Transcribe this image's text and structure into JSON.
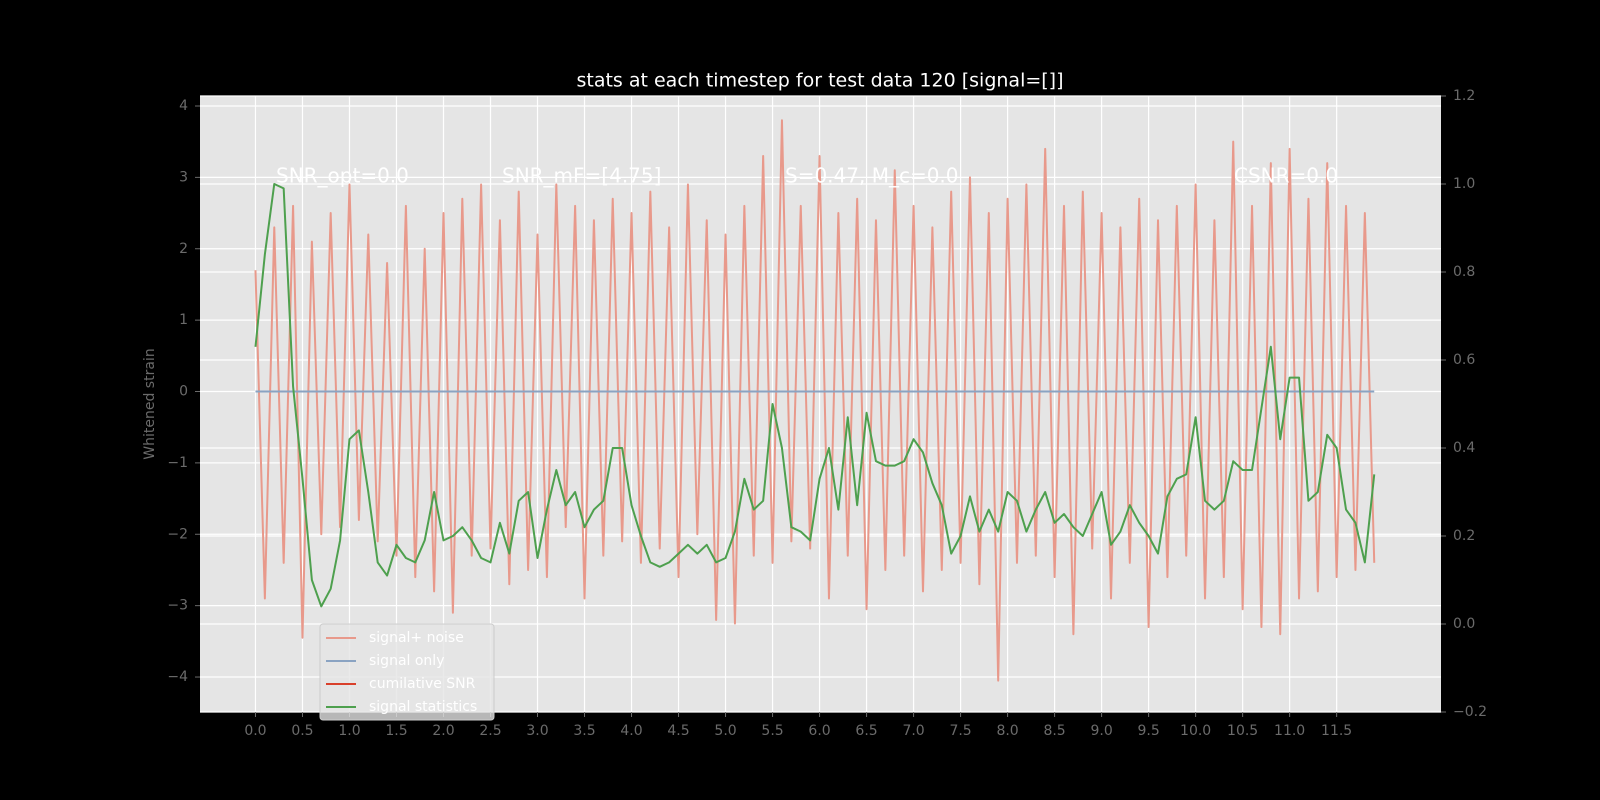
{
  "chart_data": {
    "type": "line",
    "title": "stats at each timestep for test data 120 [signal=[]]",
    "y_label": "Whitened strain",
    "annotations": [
      "SNR_opt=0.0",
      "SNR_mF=[4.75]",
      "S=0.47, M_c=0.0",
      "CSNR=0.0"
    ],
    "xlim": [
      -0.59,
      12.61
    ],
    "ylim": [
      -4.49,
      4.14
    ],
    "y2lim": [
      -0.2,
      1.2
    ],
    "xticks": [
      {
        "value": 0,
        "label": "0.0"
      },
      0.5,
      {
        "value": 1,
        "label": "1.0"
      },
      1.5,
      {
        "value": 2,
        "label": "2.0"
      },
      2.5,
      {
        "value": 3,
        "label": "3.0"
      },
      3.5,
      {
        "value": 4,
        "label": "4.0"
      },
      4.5,
      {
        "value": 5,
        "label": "5.0"
      },
      5.5,
      {
        "value": 6,
        "label": "6.0"
      },
      6.5,
      {
        "value": 7,
        "label": "7.0"
      },
      7.5,
      {
        "value": 8,
        "label": "8.0"
      },
      8.5,
      {
        "value": 9,
        "label": "9.0"
      },
      9.5,
      {
        "value": 10,
        "label": "10.0"
      },
      10.5,
      {
        "value": 11,
        "label": "11.0"
      },
      11.5
    ],
    "yticks": [
      {
        "value": -4,
        "label": "−4"
      },
      {
        "value": -3,
        "label": "−3"
      },
      {
        "value": -2,
        "label": "−2"
      },
      {
        "value": -1,
        "label": "−1"
      },
      0,
      1,
      2,
      3,
      4
    ],
    "y2ticks": [
      {
        "value": -0.2,
        "label": "−0.2"
      },
      {
        "value": 0,
        "label": "0.0"
      },
      0.2,
      0.4,
      0.6,
      0.8,
      {
        "value": 1,
        "label": "1.0"
      },
      1.2
    ],
    "grid": true,
    "legend": "lower left",
    "x": [
      0,
      0.1,
      0.2,
      0.3,
      0.4,
      0.5,
      0.6,
      0.7,
      0.8,
      0.9,
      1,
      1.1,
      1.2,
      1.3,
      1.4,
      1.5,
      1.6,
      1.7,
      1.8,
      1.9,
      2,
      2.1,
      2.2,
      2.3,
      2.4,
      2.5,
      2.6,
      2.7,
      2.8,
      2.9,
      3,
      3.1,
      3.2,
      3.3,
      3.4,
      3.5,
      3.6,
      3.7,
      3.8,
      3.9,
      4,
      4.1,
      4.2,
      4.3,
      4.4,
      4.5,
      4.6,
      4.7,
      4.8,
      4.9,
      5,
      5.1,
      5.2,
      5.3,
      5.4,
      5.5,
      5.6,
      5.7,
      5.8,
      5.9,
      6,
      6.1,
      6.2,
      6.3,
      6.4,
      6.5,
      6.6,
      6.7,
      6.8,
      6.9,
      7,
      7.1,
      7.2,
      7.3,
      7.4,
      7.5,
      7.6,
      7.7,
      7.8,
      7.9,
      8,
      8.1,
      8.2,
      8.3,
      8.4,
      8.5,
      8.6,
      8.7,
      8.8,
      8.9,
      9,
      9.1,
      9.2,
      9.3,
      9.4,
      9.5,
      9.6,
      9.7,
      9.8,
      9.9,
      10,
      10.1,
      10.2,
      10.3,
      10.4,
      10.5,
      10.6,
      10.7,
      10.8,
      10.9,
      11,
      11.1,
      11.2,
      11.3,
      11.4,
      11.5,
      11.6,
      11.7,
      11.8,
      11.9
    ],
    "series": [
      {
        "name": "signal+ noise",
        "color": "#e8998b",
        "values": [
          1.7,
          -2.9,
          2.3,
          -2.4,
          2.6,
          -3.45,
          2.1,
          -2.0,
          2.5,
          -1.9,
          2.9,
          -1.8,
          2.2,
          -2.1,
          1.8,
          -2.3,
          2.6,
          -2.6,
          2.0,
          -2.8,
          2.5,
          -3.1,
          2.7,
          -2.3,
          2.9,
          -2.2,
          2.4,
          -2.7,
          2.8,
          -2.5,
          2.2,
          -2.6,
          2.9,
          -1.9,
          2.6,
          -2.9,
          2.4,
          -2.3,
          2.7,
          -2.1,
          2.5,
          -2.4,
          2.8,
          -2.2,
          2.3,
          -2.6,
          2.9,
          -2.0,
          2.4,
          -3.2,
          2.2,
          -3.25,
          2.6,
          -2.3,
          3.3,
          -2.4,
          3.8,
          -2.1,
          2.6,
          -2.2,
          3.3,
          -2.9,
          2.5,
          -2.3,
          2.7,
          -3.05,
          2.4,
          -2.5,
          3.1,
          -2.3,
          2.6,
          -2.8,
          2.3,
          -2.5,
          2.8,
          -2.4,
          3.0,
          -2.7,
          2.5,
          -4.05,
          2.7,
          -2.4,
          2.9,
          -2.3,
          3.4,
          -2.6,
          2.6,
          -3.4,
          2.8,
          -2.2,
          2.5,
          -2.9,
          2.3,
          -2.4,
          2.7,
          -3.3,
          2.4,
          -2.6,
          2.6,
          -2.3,
          2.9,
          -2.9,
          2.4,
          -2.6,
          3.5,
          -3.05,
          2.6,
          -3.3,
          3.2,
          -3.4,
          3.4,
          -2.9,
          2.7,
          -2.8,
          3.2,
          -2.6,
          2.6,
          -2.5,
          2.5,
          -2.4
        ]
      },
      {
        "name": "signal only",
        "color": "#8aa3c2",
        "values": [
          0,
          0,
          0,
          0,
          0,
          0,
          0,
          0,
          0,
          0,
          0,
          0,
          0,
          0,
          0,
          0,
          0,
          0,
          0,
          0,
          0,
          0,
          0,
          0,
          0,
          0,
          0,
          0,
          0,
          0,
          0,
          0,
          0,
          0,
          0,
          0,
          0,
          0,
          0,
          0,
          0,
          0,
          0,
          0,
          0,
          0,
          0,
          0,
          0,
          0,
          0,
          0,
          0,
          0,
          0,
          0,
          0,
          0,
          0,
          0,
          0,
          0,
          0,
          0,
          0,
          0,
          0,
          0,
          0,
          0,
          0,
          0,
          0,
          0,
          0,
          0,
          0,
          0,
          0,
          0,
          0,
          0,
          0,
          0,
          0,
          0,
          0,
          0,
          0,
          0,
          0,
          0,
          0,
          0,
          0,
          0,
          0,
          0,
          0,
          0,
          0,
          0,
          0,
          0,
          0,
          0,
          0,
          0,
          0,
          0,
          0,
          0,
          0,
          0,
          0,
          0,
          0,
          0,
          0,
          0
        ]
      },
      {
        "name": "cumilative SNR",
        "color": "#d9402b",
        "axis": "y2",
        "values": [
          null,
          null,
          null,
          null,
          null,
          null,
          null,
          null,
          null,
          null,
          null,
          null,
          null,
          null,
          null,
          null,
          null,
          null,
          null,
          null,
          null,
          null,
          null,
          null,
          null,
          null,
          null,
          null,
          null,
          null,
          null,
          null,
          null,
          null,
          null,
          null,
          null,
          null,
          null,
          null,
          null,
          null,
          null,
          null,
          null,
          null,
          null,
          null,
          null,
          null,
          null,
          null,
          null,
          null,
          null,
          null,
          null,
          null,
          null,
          null,
          null,
          null,
          null,
          null,
          null,
          null,
          null,
          null,
          null,
          null,
          null,
          null,
          null,
          null,
          null,
          null,
          null,
          null,
          null,
          null,
          null,
          null,
          null,
          null,
          null,
          null,
          null,
          null,
          null,
          null,
          null,
          null,
          null,
          null,
          null,
          null,
          null,
          null,
          null,
          null,
          null,
          null,
          null,
          null,
          null,
          null,
          null,
          null,
          null,
          null,
          null,
          null,
          null,
          null,
          null,
          null,
          null,
          null,
          null,
          null
        ]
      },
      {
        "name": "signal statistics",
        "color": "#4ea04e",
        "axis": "y2",
        "values": [
          0.63,
          0.84,
          1.0,
          0.99,
          0.54,
          0.33,
          0.1,
          0.04,
          0.08,
          0.19,
          0.42,
          0.44,
          0.3,
          0.14,
          0.11,
          0.18,
          0.15,
          0.14,
          0.19,
          0.3,
          0.19,
          0.2,
          0.22,
          0.19,
          0.15,
          0.14,
          0.23,
          0.16,
          0.28,
          0.3,
          0.15,
          0.26,
          0.35,
          0.27,
          0.3,
          0.22,
          0.26,
          0.28,
          0.4,
          0.4,
          0.27,
          0.2,
          0.14,
          0.13,
          0.14,
          0.16,
          0.18,
          0.16,
          0.18,
          0.14,
          0.15,
          0.21,
          0.33,
          0.26,
          0.28,
          0.5,
          0.4,
          0.22,
          0.21,
          0.19,
          0.33,
          0.4,
          0.26,
          0.47,
          0.27,
          0.48,
          0.37,
          0.36,
          0.36,
          0.37,
          0.42,
          0.39,
          0.32,
          0.27,
          0.16,
          0.2,
          0.29,
          0.21,
          0.26,
          0.21,
          0.3,
          0.28,
          0.21,
          0.26,
          0.3,
          0.23,
          0.25,
          0.22,
          0.2,
          0.25,
          0.3,
          0.18,
          0.21,
          0.27,
          0.23,
          0.2,
          0.16,
          0.29,
          0.33,
          0.34,
          0.47,
          0.28,
          0.26,
          0.28,
          0.37,
          0.35,
          0.35,
          0.49,
          0.63,
          0.42,
          0.56,
          0.56,
          0.28,
          0.3,
          0.43,
          0.4,
          0.26,
          0.23,
          0.14,
          0.34
        ]
      }
    ]
  }
}
